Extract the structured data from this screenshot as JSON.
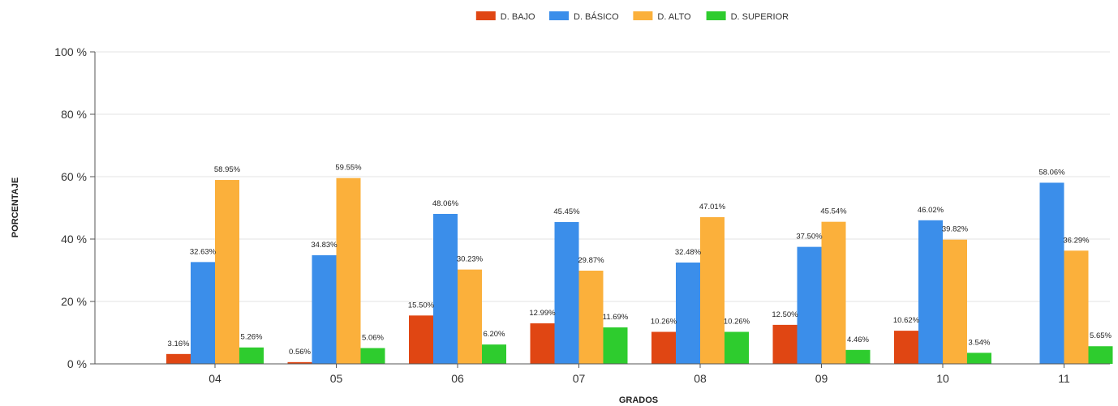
{
  "chart_data": {
    "type": "bar",
    "title": "",
    "xlabel": "GRADOS",
    "ylabel": "PORCENTAJE",
    "ylim": [
      0,
      100
    ],
    "yticks": [
      {
        "value": 0,
        "label": "0 %"
      },
      {
        "value": 20,
        "label": "20 %"
      },
      {
        "value": 40,
        "label": "40 %"
      },
      {
        "value": 60,
        "label": "60 %"
      },
      {
        "value": 80,
        "label": "80 %"
      },
      {
        "value": 100,
        "label": "100 %"
      }
    ],
    "grid": true,
    "legend_position": "top-center",
    "categories": [
      "04",
      "05",
      "06",
      "07",
      "08",
      "09",
      "10",
      "11"
    ],
    "series": [
      {
        "name": "D. BAJO",
        "color": "#e04613",
        "values": [
          3.16,
          0.56,
          15.5,
          12.99,
          10.26,
          12.5,
          10.62,
          null
        ],
        "labels": [
          "3.16%",
          "0.56%",
          "15.50%",
          "12.99%",
          "10.26%",
          "12.50%",
          "10.62%",
          ""
        ]
      },
      {
        "name": "D. BÁSICO",
        "color": "#3b8eea",
        "values": [
          32.63,
          34.83,
          48.06,
          45.45,
          32.48,
          37.5,
          46.02,
          58.06
        ],
        "labels": [
          "32.63%",
          "34.83%",
          "48.06%",
          "45.45%",
          "32.48%",
          "37.50%",
          "46.02%",
          "58.06%"
        ]
      },
      {
        "name": "D. ALTO",
        "color": "#fbb03b",
        "values": [
          58.95,
          59.55,
          30.23,
          29.87,
          47.01,
          45.54,
          39.82,
          36.29
        ],
        "labels": [
          "58.95%",
          "59.55%",
          "30.23%",
          "29.87%",
          "47.01%",
          "45.54%",
          "39.82%",
          "36.29%"
        ]
      },
      {
        "name": "D. SUPERIOR",
        "color": "#2ecc2e",
        "values": [
          5.26,
          5.06,
          6.2,
          11.69,
          10.26,
          4.46,
          3.54,
          5.65
        ],
        "labels": [
          "5.26%",
          "5.06%",
          "6.20%",
          "11.69%",
          "10.26%",
          "4.46%",
          "3.54%",
          "5.65%"
        ]
      }
    ]
  }
}
